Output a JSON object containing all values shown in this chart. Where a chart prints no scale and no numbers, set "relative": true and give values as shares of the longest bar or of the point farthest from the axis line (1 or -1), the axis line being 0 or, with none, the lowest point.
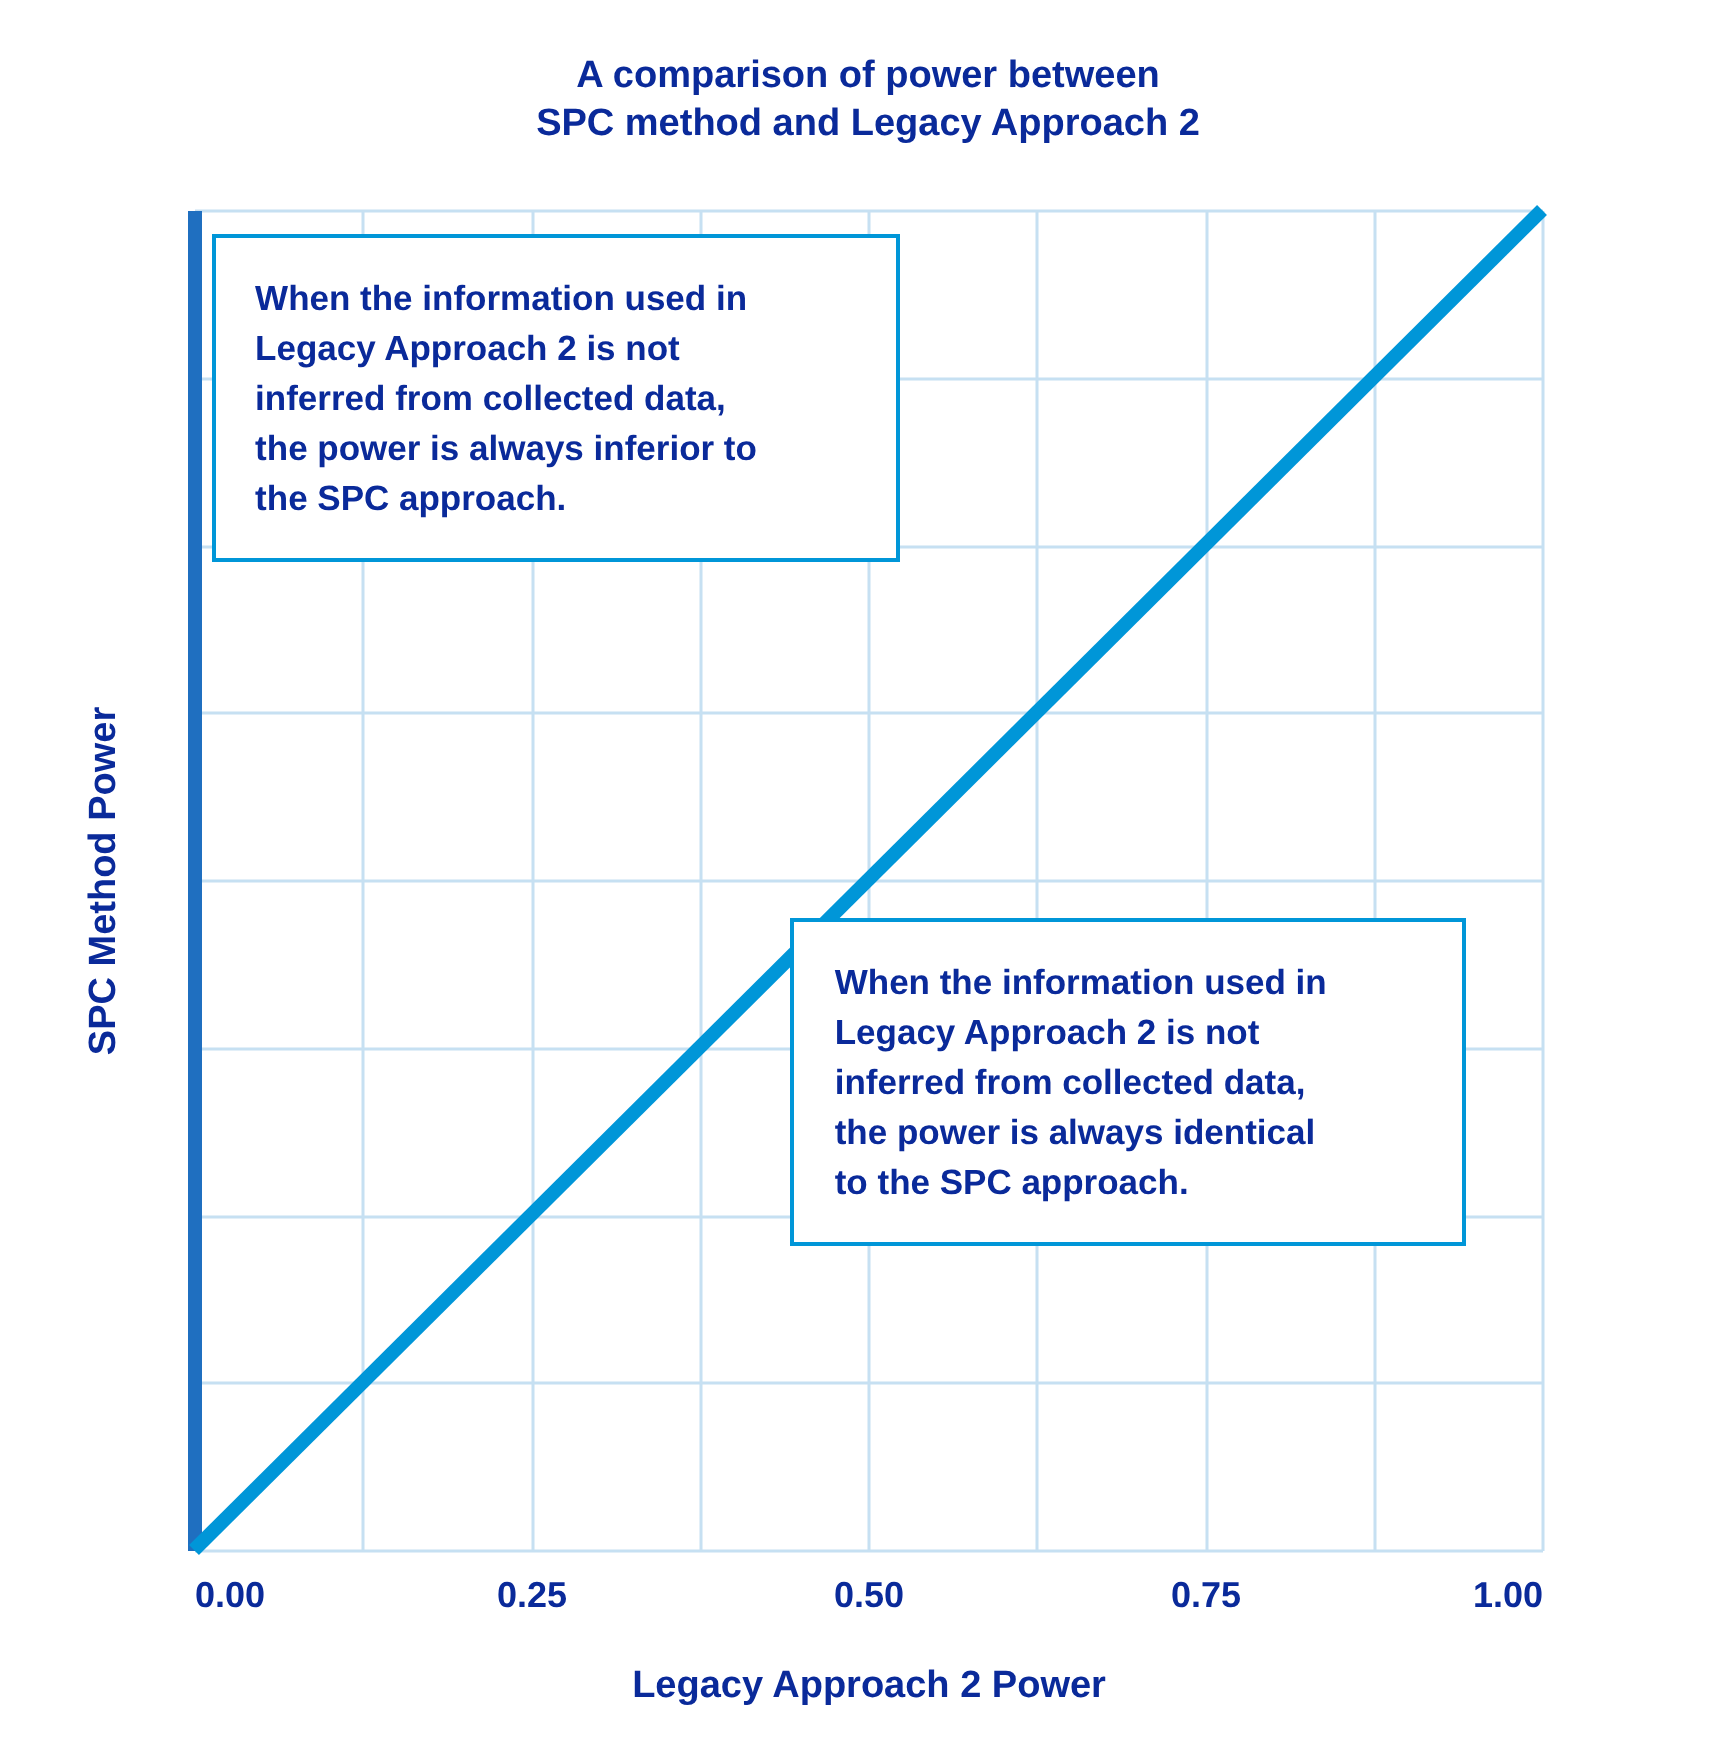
{
  "chart_data": {
    "type": "line",
    "title": "A comparison of power between SPC method and Legacy Approach 2",
    "xlabel": "Legacy Approach 2 Power",
    "ylabel": "SPC Method Power",
    "relative": true,
    "x": [
      0,
      1
    ],
    "series": [
      {
        "color": "#0096d8",
        "values": [
          0,
          1
        ]
      }
    ],
    "xlim": [
      0,
      1
    ],
    "xticks": [
      {
        "value": 0,
        "label": "0.00"
      },
      {
        "value": 0.125,
        "label": null
      },
      {
        "value": 0.25,
        "label": "0.25"
      },
      {
        "value": 0.375,
        "label": null
      },
      {
        "value": 0.5,
        "label": "0.50"
      },
      {
        "value": 0.625,
        "label": null
      },
      {
        "value": 0.75,
        "label": "0.75"
      },
      {
        "value": 0.875,
        "label": null
      },
      {
        "value": 1,
        "label": "1.00"
      }
    ],
    "grid": true,
    "annotations": [
      "When the information used in Legacy Approach 2 is not inferred from collected data, the power is always inferior to the SPC approach.",
      "When the information used in Legacy Approach 2 is not inferred from collected data, the power is always identical to the SPC approach."
    ]
  }
}
